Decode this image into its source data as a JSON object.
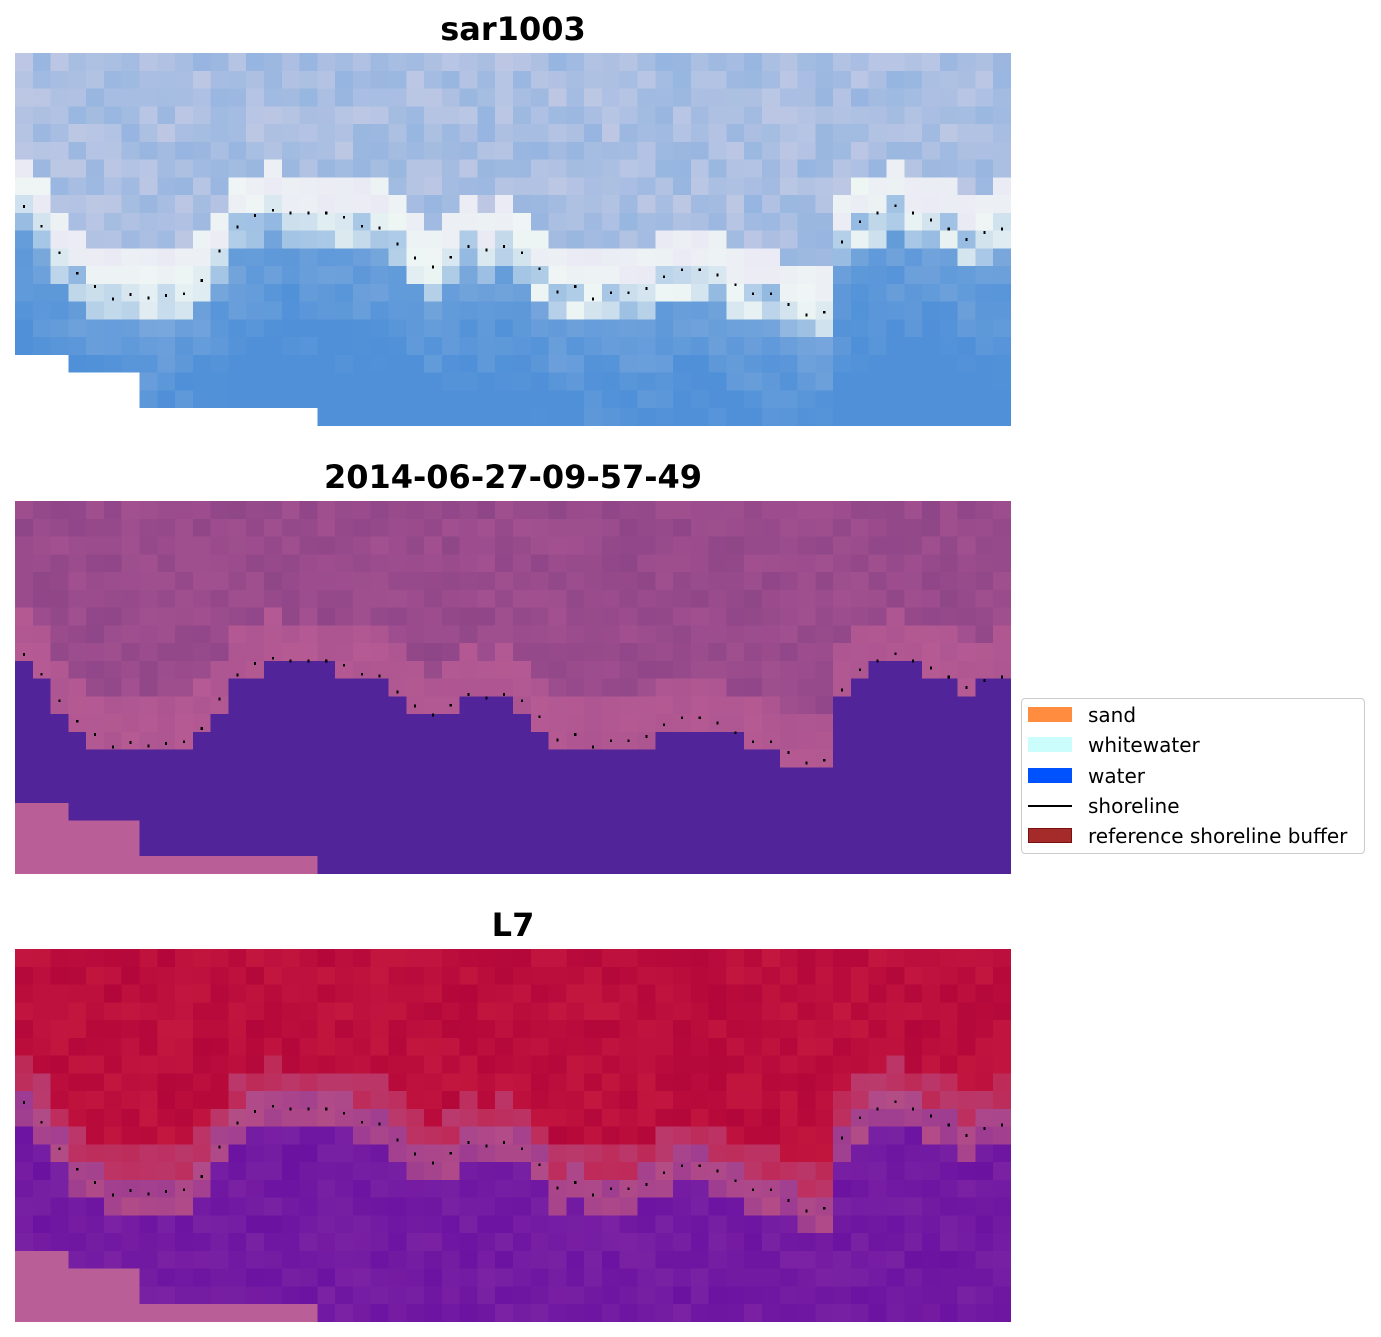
{
  "panels": [
    {
      "title": "sar1003",
      "style": "rgb",
      "colors": {
        "sand": "#eaeaf4",
        "sand_alt": "#c9cde6",
        "white": "#eef6f4",
        "water_shallow": "#7aa8dc",
        "water_deep": "#4f90d8",
        "nodata": "#ffffff"
      }
    },
    {
      "title": "2014-06-27-09-57-49",
      "style": "classified",
      "colors": {
        "land": "#a2508f",
        "land_alt": "#8f4688",
        "transition": "#b65a93",
        "water": "#51249a",
        "nodata": "#b95e96"
      }
    },
    {
      "title": "L7",
      "style": "index",
      "colors": {
        "land": "#c4173f",
        "land_alt": "#b3063a",
        "transition": "#b44d86",
        "water": "#7a22a3",
        "water_alt": "#5f05a0",
        "nodata": "#b95e96"
      }
    }
  ],
  "legend": {
    "items": [
      {
        "label": "sand",
        "kind": "patch",
        "color": "#ff8c3f"
      },
      {
        "label": "whitewater",
        "kind": "patch",
        "color": "#cbfdfd"
      },
      {
        "label": "water",
        "kind": "patch",
        "color": "#0052ff"
      },
      {
        "label": "shoreline",
        "kind": "line",
        "color": "#000000"
      },
      {
        "label": "reference shoreline buffer",
        "kind": "patch",
        "color": "#a52a2a",
        "edge": "#7a1010"
      }
    ]
  }
}
